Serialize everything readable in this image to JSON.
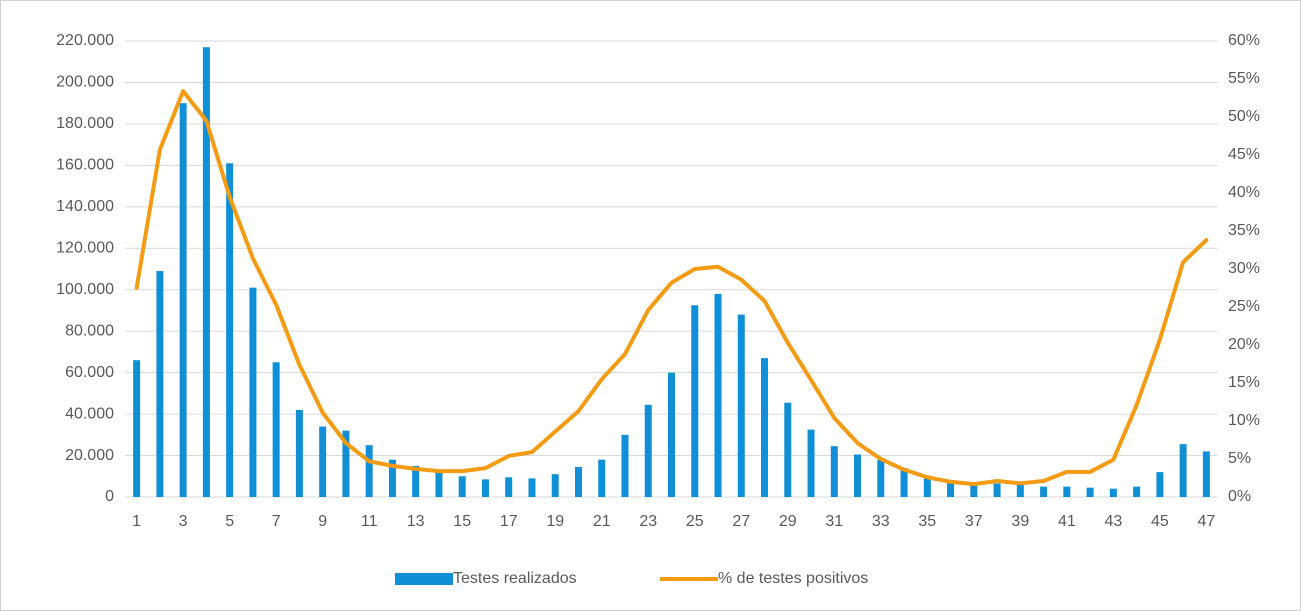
{
  "chart_data": {
    "type": "bar-line",
    "categories": [
      "1",
      null,
      "3",
      null,
      "5",
      null,
      "7",
      null,
      "9",
      null,
      "11",
      null,
      "13",
      null,
      "15",
      null,
      "17",
      null,
      "19",
      null,
      "21",
      null,
      "23",
      null,
      "25",
      null,
      "27",
      null,
      "29",
      null,
      "31",
      null,
      "33",
      null,
      "35",
      null,
      "37",
      null,
      "39",
      null,
      "41",
      null,
      "43",
      null,
      "45",
      null,
      "47"
    ],
    "series": [
      {
        "name": "Testes realizados",
        "type": "bar",
        "color": "#0f8fd6",
        "axis": "y",
        "values": [
          66000,
          109000,
          190000,
          217000,
          161000,
          101000,
          65000,
          42000,
          34000,
          32000,
          25000,
          18000,
          15000,
          12000,
          10000,
          8500,
          9500,
          9000,
          11000,
          14500,
          18000,
          30000,
          44500,
          60000,
          92500,
          98000,
          88000,
          67000,
          45500,
          32500,
          24500,
          20500,
          18000,
          14000,
          9000,
          8000,
          7000,
          6500,
          6000,
          5000,
          5000,
          4500,
          4000,
          5000,
          12000,
          25500,
          22000
        ]
      },
      {
        "name": "% de testes positivos",
        "type": "line",
        "color": "#f39b13",
        "axis": "y2",
        "values": [
          27.5,
          45.7,
          53.4,
          49.5,
          39.5,
          31.4,
          25.3,
          17.4,
          11.1,
          7.1,
          4.7,
          4.1,
          3.7,
          3.4,
          3.4,
          3.8,
          5.4,
          5.9,
          8.6,
          11.3,
          15.5,
          18.8,
          24.6,
          28.2,
          30.0,
          30.3,
          28.6,
          25.8,
          20.3,
          15.4,
          10.4,
          7.1,
          5.0,
          3.6,
          2.6,
          2.0,
          1.7,
          2.1,
          1.8,
          2.1,
          3.3,
          3.3,
          4.9,
          12.1,
          20.7,
          30.9,
          33.8
        ]
      }
    ],
    "ylim": [
      0,
      220000
    ],
    "yticks": [
      0,
      {
        "value": 20000,
        "label": "20.000"
      },
      {
        "value": 40000,
        "label": "40.000"
      },
      {
        "value": 60000,
        "label": "60.000"
      },
      {
        "value": 80000,
        "label": "80.000"
      },
      {
        "value": 100000,
        "label": "100.000"
      },
      {
        "value": 120000,
        "label": "120.000"
      },
      {
        "value": 140000,
        "label": "140.000"
      },
      {
        "value": 160000,
        "label": "160.000"
      },
      {
        "value": 180000,
        "label": "180.000"
      },
      {
        "value": 200000,
        "label": "200.000"
      },
      {
        "value": 220000,
        "label": "220.000"
      }
    ],
    "y2lim": [
      0,
      60
    ],
    "y2ticks": [
      {
        "value": 0,
        "label": "0%"
      },
      {
        "value": 5,
        "label": "5%"
      },
      {
        "value": 10,
        "label": "10%"
      },
      {
        "value": 15,
        "label": "15%"
      },
      {
        "value": 20,
        "label": "20%"
      },
      {
        "value": 25,
        "label": "25%"
      },
      {
        "value": 30,
        "label": "30%"
      },
      {
        "value": 35,
        "label": "35%"
      },
      {
        "value": 40,
        "label": "40%"
      },
      {
        "value": 45,
        "label": "45%"
      },
      {
        "value": 50,
        "label": "50%"
      },
      {
        "value": 55,
        "label": "55%"
      },
      {
        "value": 60,
        "label": "60%"
      }
    ],
    "grid": true,
    "legend": "bottom"
  }
}
